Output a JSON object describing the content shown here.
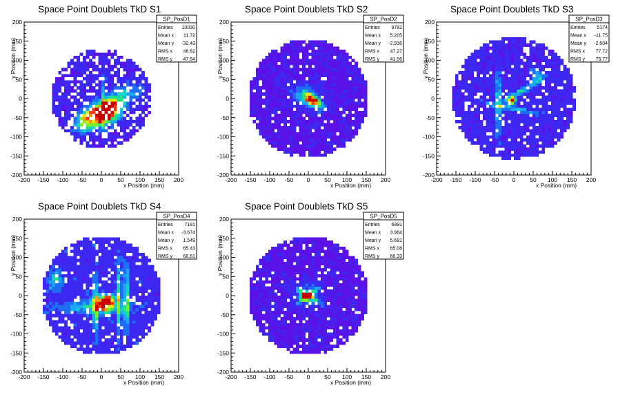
{
  "chart_data": [
    {
      "type": "heatmap",
      "title": "Space Point Doublets TkD S1",
      "xlabel": "x Position (mm)",
      "ylabel": "y Position (mm)",
      "xlim": [
        -200,
        200
      ],
      "ylim": [
        -200,
        200
      ],
      "xticks": [
        -200,
        -150,
        -100,
        -50,
        0,
        50,
        100,
        150,
        200
      ],
      "yticks": [
        -200,
        -150,
        -100,
        -50,
        0,
        50,
        100,
        150,
        200
      ],
      "stats": {
        "name": "SP_PosD1",
        "rows": [
          {
            "label": "Entries",
            "value": "10030"
          },
          {
            "label": "Mean x",
            "value": "11.72"
          },
          {
            "label": "Mean y",
            "value": "-32.43"
          },
          {
            "label": "RMS x",
            "value": "48.62"
          },
          {
            "label": "RMS y",
            "value": "47.54"
          }
        ]
      }
    },
    {
      "type": "heatmap",
      "title": "Space Point Doublets TkD S2",
      "xlabel": "x Position (mm)",
      "ylabel": "y Position (mm)",
      "xlim": [
        -200,
        200
      ],
      "ylim": [
        -200,
        200
      ],
      "xticks": [
        -200,
        -150,
        -100,
        -50,
        0,
        50,
        100,
        150,
        200
      ],
      "yticks": [
        -200,
        -150,
        -100,
        -50,
        0,
        50,
        100,
        150,
        200
      ],
      "stats": {
        "name": "SP_PosD2",
        "rows": [
          {
            "label": "Entries",
            "value": "9782"
          },
          {
            "label": "Mean x",
            "value": "5.205"
          },
          {
            "label": "Mean y",
            "value": "-2.936"
          },
          {
            "label": "RMS x",
            "value": "47.27"
          },
          {
            "label": "RMS y",
            "value": "41.56"
          }
        ]
      }
    },
    {
      "type": "heatmap",
      "title": "Space Point Doublets TkD S3",
      "xlabel": "x Position (mm)",
      "ylabel": "y Position (mm)",
      "xlim": [
        -200,
        200
      ],
      "ylim": [
        -200,
        200
      ],
      "xticks": [
        -200,
        -150,
        -100,
        -50,
        0,
        50,
        100,
        150,
        200
      ],
      "yticks": [
        -200,
        -150,
        -100,
        -50,
        0,
        50,
        100,
        150,
        200
      ],
      "stats": {
        "name": "SP_PosD3",
        "rows": [
          {
            "label": "Entries",
            "value": "5174"
          },
          {
            "label": "Mean x",
            "value": "-11.75"
          },
          {
            "label": "Mean y",
            "value": "-2.604"
          },
          {
            "label": "RMS x",
            "value": "77.72"
          },
          {
            "label": "RMS y",
            "value": "75.77"
          }
        ]
      }
    },
    {
      "type": "heatmap",
      "title": "Space Point Doublets TkD S4",
      "xlabel": "x Position (mm)",
      "ylabel": "y Position (mm)",
      "xlim": [
        -200,
        200
      ],
      "ylim": [
        -200,
        200
      ],
      "xticks": [
        -200,
        -150,
        -100,
        -50,
        0,
        50,
        100,
        150,
        200
      ],
      "yticks": [
        -200,
        -150,
        -100,
        -50,
        0,
        50,
        100,
        150,
        200
      ],
      "stats": {
        "name": "SP_PosD4",
        "rows": [
          {
            "label": "Entries",
            "value": "7181"
          },
          {
            "label": "Mean x",
            "value": "-3.674"
          },
          {
            "label": "Mean y",
            "value": "1.549"
          },
          {
            "label": "RMS x",
            "value": "65.43"
          },
          {
            "label": "RMS y",
            "value": "68.61"
          }
        ]
      }
    },
    {
      "type": "heatmap",
      "title": "Space Point Doublets TkD S5",
      "xlabel": "x Position (mm)",
      "ylabel": "y Position (mm)",
      "xlim": [
        -200,
        200
      ],
      "ylim": [
        -200,
        200
      ],
      "xticks": [
        -200,
        -150,
        -100,
        -50,
        0,
        50,
        100,
        150,
        200
      ],
      "yticks": [
        -200,
        -150,
        -100,
        -50,
        0,
        50,
        100,
        150,
        200
      ],
      "stats": {
        "name": "SP_PosD5",
        "rows": [
          {
            "label": "Entries",
            "value": "6991"
          },
          {
            "label": "Mean x",
            "value": "3.984"
          },
          {
            "label": "Mean y",
            "value": "5.681"
          },
          {
            "label": "RMS x",
            "value": "65.08"
          },
          {
            "label": "RMS y",
            "value": "66.33"
          }
        ]
      }
    }
  ],
  "palette": [
    "#5a12e6",
    "#3c28f0",
    "#1e6ef5",
    "#1aa8f0",
    "#18d2c8",
    "#20e678",
    "#7ef028",
    "#e6e614",
    "#f59c0a",
    "#f03c0a",
    "#c80000"
  ]
}
